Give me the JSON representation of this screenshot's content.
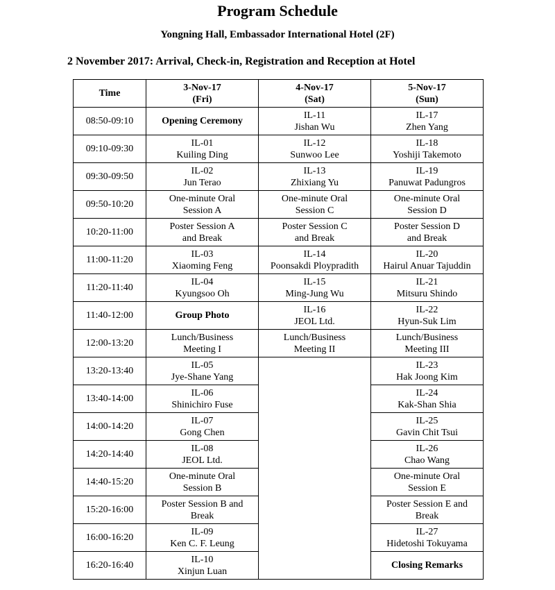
{
  "page": {
    "title": "Program Schedule",
    "subtitle": "Yongning Hall, Embassador International Hotel (2F)",
    "note": "2 November 2017: Arrival, Check-in, Registration and Reception at Hotel"
  },
  "table": {
    "header_time": "Time",
    "header_days": [
      {
        "lines": [
          "3-Nov-17",
          "(Fri)"
        ]
      },
      {
        "lines": [
          "4-Nov-17",
          "(Sat)"
        ]
      },
      {
        "lines": [
          "5-Nov-17",
          "(Sun)"
        ]
      }
    ],
    "rows": [
      {
        "time": "08:50-09:10",
        "cells": [
          {
            "lines": [
              "Opening Ceremony"
            ],
            "bold": true
          },
          {
            "lines": [
              "IL-11",
              "Jishan Wu"
            ]
          },
          {
            "lines": [
              "IL-17",
              "Zhen Yang"
            ]
          }
        ]
      },
      {
        "time": "09:10-09:30",
        "cells": [
          {
            "lines": [
              "IL-01",
              "Kuiling Ding"
            ]
          },
          {
            "lines": [
              "IL-12",
              "Sunwoo Lee"
            ]
          },
          {
            "lines": [
              "IL-18",
              "Yoshiji Takemoto"
            ]
          }
        ]
      },
      {
        "time": "09:30-09:50",
        "cells": [
          {
            "lines": [
              "IL-02",
              "Jun Terao"
            ]
          },
          {
            "lines": [
              "IL-13",
              "Zhixiang Yu"
            ]
          },
          {
            "lines": [
              "IL-19",
              "Panuwat Padungros"
            ]
          }
        ]
      },
      {
        "time": "09:50-10:20",
        "cells": [
          {
            "lines": [
              "One-minute Oral",
              "Session A"
            ]
          },
          {
            "lines": [
              "One-minute Oral",
              "Session C"
            ]
          },
          {
            "lines": [
              "One-minute Oral",
              "Session D"
            ]
          }
        ]
      },
      {
        "time": "10:20-11:00",
        "cells": [
          {
            "lines": [
              "Poster Session A",
              "and Break"
            ]
          },
          {
            "lines": [
              "Poster Session C",
              "and Break"
            ]
          },
          {
            "lines": [
              "Poster Session D",
              "and Break"
            ]
          }
        ]
      },
      {
        "time": "11:00-11:20",
        "cells": [
          {
            "lines": [
              "IL-03",
              "Xiaoming Feng"
            ]
          },
          {
            "lines": [
              "IL-14",
              "Poonsakdi Ploypradith"
            ]
          },
          {
            "lines": [
              "IL-20",
              "Hairul Anuar Tajuddin"
            ]
          }
        ]
      },
      {
        "time": "11:20-11:40",
        "cells": [
          {
            "lines": [
              "IL-04",
              "Kyungsoo Oh"
            ]
          },
          {
            "lines": [
              "IL-15",
              "Ming-Jung Wu"
            ]
          },
          {
            "lines": [
              "IL-21",
              "Mitsuru Shindo"
            ]
          }
        ]
      },
      {
        "time": "11:40-12:00",
        "cells": [
          {
            "lines": [
              "Group Photo"
            ],
            "bold": true
          },
          {
            "lines": [
              "IL-16",
              "JEOL Ltd."
            ]
          },
          {
            "lines": [
              "IL-22",
              "Hyun-Suk Lim"
            ]
          }
        ]
      },
      {
        "time": "12:00-13:20",
        "cells": [
          {
            "lines": [
              "Lunch/Business",
              "Meeting I"
            ]
          },
          {
            "lines": [
              "Lunch/Business",
              "Meeting II"
            ]
          },
          {
            "lines": [
              "Lunch/Business",
              "Meeting III"
            ]
          }
        ]
      },
      {
        "time": "13:20-13:40",
        "cells": [
          {
            "lines": [
              "IL-05",
              "Jye-Shane Yang"
            ]
          },
          {
            "lines": [],
            "rowspan": 8
          },
          {
            "lines": [
              "IL-23",
              "Hak Joong Kim"
            ]
          }
        ]
      },
      {
        "time": "13:40-14:00",
        "cells": [
          {
            "lines": [
              "IL-06",
              "Shinichiro Fuse"
            ]
          },
          null,
          {
            "lines": [
              "IL-24",
              "Kak-Shan Shia"
            ]
          }
        ]
      },
      {
        "time": "14:00-14:20",
        "cells": [
          {
            "lines": [
              "IL-07",
              "Gong Chen"
            ]
          },
          null,
          {
            "lines": [
              "IL-25",
              "Gavin Chit Tsui"
            ]
          }
        ]
      },
      {
        "time": "14:20-14:40",
        "cells": [
          {
            "lines": [
              "IL-08",
              "JEOL Ltd."
            ]
          },
          null,
          {
            "lines": [
              "IL-26",
              "Chao Wang"
            ]
          }
        ]
      },
      {
        "time": "14:40-15:20",
        "cells": [
          {
            "lines": [
              "One-minute Oral",
              "Session B"
            ]
          },
          null,
          {
            "lines": [
              "One-minute Oral",
              "Session E"
            ]
          }
        ]
      },
      {
        "time": "15:20-16:00",
        "cells": [
          {
            "lines": [
              "Poster Session B and",
              "Break"
            ]
          },
          null,
          {
            "lines": [
              "Poster Session E and",
              "Break"
            ]
          }
        ]
      },
      {
        "time": "16:00-16:20",
        "cells": [
          {
            "lines": [
              "IL-09",
              "Ken C. F. Leung"
            ]
          },
          null,
          {
            "lines": [
              "IL-27",
              "Hidetoshi Tokuyama"
            ]
          }
        ]
      },
      {
        "time": "16:20-16:40",
        "cells": [
          {
            "lines": [
              "IL-10",
              "Xinjun Luan"
            ]
          },
          null,
          {
            "lines": [
              "Closing Remarks"
            ],
            "bold": true
          }
        ]
      }
    ]
  }
}
